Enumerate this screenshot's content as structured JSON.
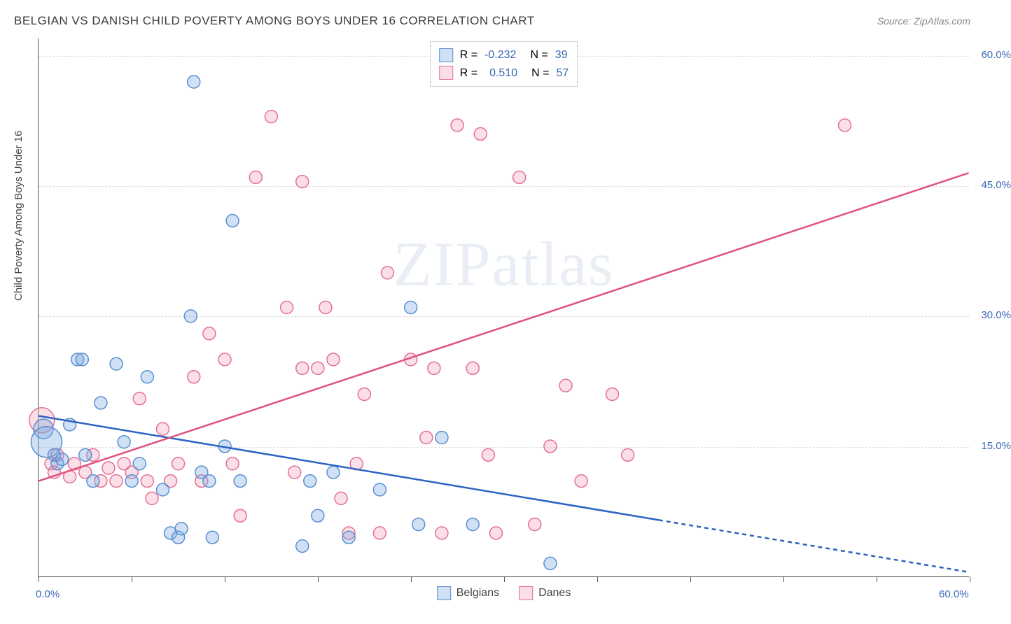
{
  "title": "BELGIAN VS DANISH CHILD POVERTY AMONG BOYS UNDER 16 CORRELATION CHART",
  "source": "Source: ZipAtlas.com",
  "ylabel": "Child Poverty Among Boys Under 16",
  "watermark": "ZIPatlas",
  "chart": {
    "type": "scatter",
    "xlim": [
      0,
      60
    ],
    "ylim": [
      0,
      62
    ],
    "x_axis_labels": [
      {
        "value": 0,
        "label": "0.0%"
      },
      {
        "value": 60,
        "label": "60.0%"
      }
    ],
    "y_gridlines": [
      15,
      30,
      45,
      60
    ],
    "y_axis_labels": [
      {
        "value": 15,
        "label": "15.0%"
      },
      {
        "value": 30,
        "label": "30.0%"
      },
      {
        "value": 45,
        "label": "45.0%"
      },
      {
        "value": 60,
        "label": "60.0%"
      }
    ],
    "xticks": [
      0,
      6,
      12,
      18,
      24,
      30,
      36,
      42,
      48,
      54,
      60
    ],
    "marker_radius": 9,
    "marker_stroke_width": 1.5,
    "line_width": 2.5,
    "background_color": "#ffffff",
    "grid_color": "#dddddd",
    "axis_label_color": "#3b68b5",
    "series": [
      {
        "name": "Belgians",
        "key": "belgians",
        "R": "-0.232",
        "N": "39",
        "fill": "rgba(120,170,225,0.35)",
        "stroke": "#5b8fd0",
        "line_color": "#2b62c4",
        "trend_solid": {
          "x1": 0,
          "y1": 18.5,
          "x2": 40,
          "y2": 6.5
        },
        "trend_dash": {
          "x1": 40,
          "y1": 6.5,
          "x2": 60,
          "y2": 0.5
        },
        "points": [
          {
            "x": 0.3,
            "y": 17,
            "r": 14
          },
          {
            "x": 0.5,
            "y": 15.5,
            "r": 22
          },
          {
            "x": 1,
            "y": 14
          },
          {
            "x": 1.2,
            "y": 13
          },
          {
            "x": 1.5,
            "y": 13.5
          },
          {
            "x": 2,
            "y": 17.5
          },
          {
            "x": 2.5,
            "y": 25
          },
          {
            "x": 2.8,
            "y": 25
          },
          {
            "x": 3,
            "y": 14
          },
          {
            "x": 3.5,
            "y": 11
          },
          {
            "x": 4,
            "y": 20
          },
          {
            "x": 5,
            "y": 24.5
          },
          {
            "x": 5.5,
            "y": 15.5
          },
          {
            "x": 6,
            "y": 11
          },
          {
            "x": 6.5,
            "y": 13
          },
          {
            "x": 7,
            "y": 23
          },
          {
            "x": 8,
            "y": 10
          },
          {
            "x": 8.5,
            "y": 5
          },
          {
            "x": 9,
            "y": 4.5
          },
          {
            "x": 9.2,
            "y": 5.5
          },
          {
            "x": 9.8,
            "y": 30
          },
          {
            "x": 10,
            "y": 57
          },
          {
            "x": 10.5,
            "y": 12
          },
          {
            "x": 11,
            "y": 11
          },
          {
            "x": 11.2,
            "y": 4.5
          },
          {
            "x": 12,
            "y": 15
          },
          {
            "x": 12.5,
            "y": 41
          },
          {
            "x": 13,
            "y": 11
          },
          {
            "x": 17,
            "y": 3.5
          },
          {
            "x": 17.5,
            "y": 11
          },
          {
            "x": 18,
            "y": 7
          },
          {
            "x": 19,
            "y": 12
          },
          {
            "x": 20,
            "y": 4.5
          },
          {
            "x": 22,
            "y": 10
          },
          {
            "x": 24,
            "y": 31
          },
          {
            "x": 24.5,
            "y": 6
          },
          {
            "x": 26,
            "y": 16
          },
          {
            "x": 28,
            "y": 6
          },
          {
            "x": 33,
            "y": 1.5
          }
        ]
      },
      {
        "name": "Danes",
        "key": "danes",
        "R": "0.510",
        "N": "57",
        "fill": "rgba(240,150,175,0.30)",
        "stroke": "#e66f94",
        "line_color": "#e0517f",
        "trend_solid": {
          "x1": 0,
          "y1": 11,
          "x2": 60,
          "y2": 46.5
        },
        "trend_dash": null,
        "points": [
          {
            "x": 0.2,
            "y": 18,
            "r": 18
          },
          {
            "x": 0.8,
            "y": 13
          },
          {
            "x": 1,
            "y": 12
          },
          {
            "x": 1.2,
            "y": 14
          },
          {
            "x": 2,
            "y": 11.5
          },
          {
            "x": 2.3,
            "y": 13
          },
          {
            "x": 3,
            "y": 12
          },
          {
            "x": 3.5,
            "y": 14
          },
          {
            "x": 4,
            "y": 11
          },
          {
            "x": 4.5,
            "y": 12.5
          },
          {
            "x": 5,
            "y": 11
          },
          {
            "x": 5.5,
            "y": 13
          },
          {
            "x": 6,
            "y": 12
          },
          {
            "x": 6.5,
            "y": 20.5
          },
          {
            "x": 7,
            "y": 11
          },
          {
            "x": 7.3,
            "y": 9
          },
          {
            "x": 8,
            "y": 17
          },
          {
            "x": 8.5,
            "y": 11
          },
          {
            "x": 9,
            "y": 13
          },
          {
            "x": 10,
            "y": 23
          },
          {
            "x": 10.5,
            "y": 11
          },
          {
            "x": 11,
            "y": 28
          },
          {
            "x": 12,
            "y": 25
          },
          {
            "x": 12.5,
            "y": 13
          },
          {
            "x": 13,
            "y": 7
          },
          {
            "x": 14,
            "y": 46
          },
          {
            "x": 15,
            "y": 53
          },
          {
            "x": 16,
            "y": 31
          },
          {
            "x": 16.5,
            "y": 12
          },
          {
            "x": 17,
            "y": 24
          },
          {
            "x": 17,
            "y": 45.5
          },
          {
            "x": 18,
            "y": 24
          },
          {
            "x": 18.5,
            "y": 31
          },
          {
            "x": 19,
            "y": 25
          },
          {
            "x": 19.5,
            "y": 9
          },
          {
            "x": 20,
            "y": 5
          },
          {
            "x": 20.5,
            "y": 13
          },
          {
            "x": 21,
            "y": 21
          },
          {
            "x": 22,
            "y": 5
          },
          {
            "x": 22.5,
            "y": 35
          },
          {
            "x": 24,
            "y": 25
          },
          {
            "x": 25,
            "y": 16
          },
          {
            "x": 25.5,
            "y": 24
          },
          {
            "x": 26,
            "y": 5
          },
          {
            "x": 27,
            "y": 52
          },
          {
            "x": 28,
            "y": 24
          },
          {
            "x": 28.5,
            "y": 51
          },
          {
            "x": 29,
            "y": 14
          },
          {
            "x": 29.5,
            "y": 5
          },
          {
            "x": 31,
            "y": 46
          },
          {
            "x": 33,
            "y": 15
          },
          {
            "x": 34,
            "y": 22
          },
          {
            "x": 35,
            "y": 11
          },
          {
            "x": 37,
            "y": 21
          },
          {
            "x": 38,
            "y": 14
          },
          {
            "x": 52,
            "y": 52
          },
          {
            "x": 32,
            "y": 6
          }
        ]
      }
    ]
  }
}
